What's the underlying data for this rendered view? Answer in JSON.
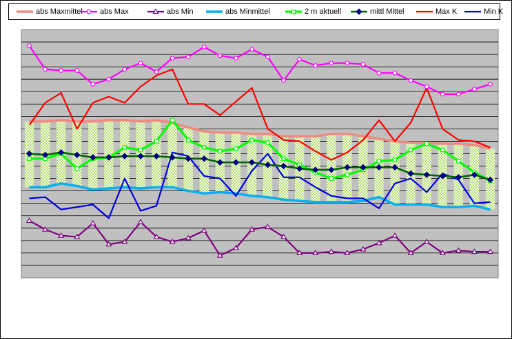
{
  "chart_data": {
    "type": "line",
    "title": "",
    "xlabel": "",
    "ylabel": "",
    "ylim": [
      0,
      20
    ],
    "grid": true,
    "legend_position": "top",
    "x": [
      1,
      2,
      3,
      4,
      5,
      6,
      7,
      8,
      9,
      10,
      11,
      12,
      13,
      14,
      15,
      16,
      17,
      18,
      19,
      20,
      21,
      22,
      23,
      24,
      25,
      26,
      27,
      28,
      29,
      30
    ],
    "series": [
      {
        "name": "abs Maxmittel",
        "color": "#F08A80",
        "style": "thick",
        "values": [
          12.6,
          12.6,
          12.7,
          12.6,
          12.6,
          12.7,
          12.7,
          12.6,
          12.7,
          12.5,
          12.1,
          11.8,
          11.7,
          11.7,
          11.6,
          11.6,
          11.4,
          11.4,
          11.4,
          11.6,
          11.6,
          11.4,
          11.2,
          11.0,
          10.9,
          10.9,
          10.8,
          10.8,
          10.7,
          10.4
        ]
      },
      {
        "name": "abs Max",
        "color": "#FF00FF",
        "marker": "circle",
        "values": [
          18.7,
          16.8,
          16.7,
          16.7,
          15.6,
          16.0,
          16.8,
          17.3,
          16.6,
          17.7,
          17.8,
          18.6,
          17.9,
          17.7,
          18.4,
          17.8,
          15.9,
          17.6,
          17.1,
          17.3,
          17.3,
          17.2,
          16.5,
          16.5,
          15.9,
          15.4,
          14.8,
          14.8,
          15.2,
          15.6
        ]
      },
      {
        "name": "abs Min",
        "color": "#800080",
        "marker": "triangle",
        "values": [
          4.6,
          3.9,
          3.4,
          3.3,
          4.4,
          2.7,
          2.9,
          4.5,
          3.3,
          2.9,
          3.2,
          3.8,
          1.8,
          2.4,
          3.9,
          4.1,
          3.3,
          2.0,
          2.0,
          2.1,
          2.0,
          2.3,
          2.8,
          3.4,
          2.0,
          2.9,
          2.0,
          2.2,
          2.1,
          2.1
        ]
      },
      {
        "name": "abs Minmittel",
        "color": "#00B0F0",
        "style": "thick",
        "values": [
          7.3,
          7.3,
          7.6,
          7.4,
          7.1,
          7.2,
          7.3,
          7.2,
          7.3,
          7.3,
          7.0,
          6.8,
          6.9,
          6.8,
          6.6,
          6.5,
          6.3,
          6.2,
          6.1,
          6.1,
          6.1,
          6.2,
          6.5,
          5.9,
          5.9,
          5.9,
          5.7,
          5.7,
          5.8,
          5.5
        ]
      },
      {
        "name": "2 m aktuell",
        "color": "#00FF00",
        "marker": "square",
        "values": [
          9.6,
          9.6,
          10.0,
          8.8,
          9.6,
          9.7,
          10.5,
          10.3,
          11.0,
          12.7,
          11.1,
          10.5,
          10.2,
          10.4,
          11.1,
          10.9,
          9.6,
          9.1,
          8.5,
          8.0,
          8.3,
          8.7,
          9.4,
          9.5,
          10.3,
          10.8,
          10.3,
          9.4,
          8.5,
          7.8
        ]
      },
      {
        "name": "mittl Mittel",
        "color": "#006400",
        "marker": "diamond",
        "values": [
          10.0,
          9.9,
          10.1,
          9.9,
          9.7,
          9.7,
          9.8,
          9.8,
          9.8,
          9.7,
          9.6,
          9.6,
          9.3,
          9.3,
          9.3,
          9.1,
          9.0,
          8.8,
          8.7,
          8.7,
          8.9,
          8.9,
          8.9,
          8.9,
          8.4,
          8.3,
          8.2,
          8.1,
          8.3,
          7.9
        ]
      },
      {
        "name": "Max K",
        "color": "#FF0000",
        "values": [
          12.3,
          14.1,
          14.9,
          12.0,
          14.1,
          14.6,
          14.1,
          15.4,
          16.3,
          16.8,
          14.0,
          14.0,
          13.1,
          14.2,
          15.3,
          12.0,
          11.1,
          11.0,
          10.2,
          9.5,
          10.1,
          11.1,
          12.7,
          11.0,
          12.5,
          15.3,
          12.0,
          11.1,
          11.0,
          10.5
        ]
      },
      {
        "name": "Min K",
        "color": "#0000E0",
        "values": [
          6.4,
          6.5,
          5.5,
          5.7,
          5.9,
          4.8,
          8.0,
          5.4,
          5.8,
          10.1,
          9.8,
          8.2,
          8.0,
          6.6,
          8.6,
          10.0,
          8.1,
          8.1,
          7.3,
          6.6,
          6.4,
          6.4,
          5.6,
          7.6,
          8.0,
          6.9,
          8.4,
          7.9,
          6.0,
          6.1
        ]
      }
    ]
  }
}
